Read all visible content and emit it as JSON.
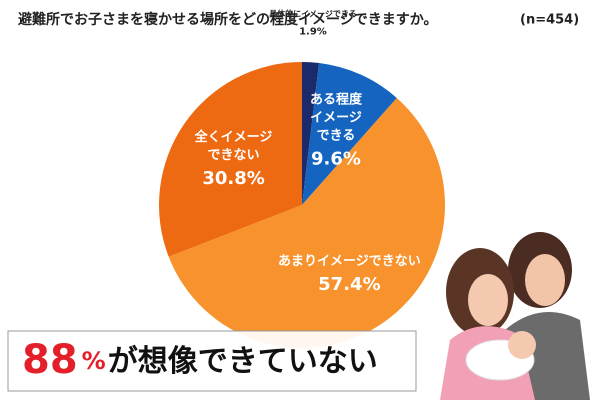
{
  "chart_data": {
    "type": "pie",
    "title": "避難所でお子さまを寝かせる場所をどの程度イメージできますか。",
    "subtitle": "(n=454)",
    "categories": [
      "具体的にイメージできる",
      "ある程度\nイメージ\nできる",
      "あまりイメージできない",
      "全くイメージ\nできない"
    ],
    "values": [
      1.9,
      9.6,
      57.4,
      30.8
    ],
    "value_labels": [
      "1.9%",
      "9.6%",
      "57.4%",
      "30.8%"
    ],
    "colors": [
      "#1b2a6b",
      "#1565c0",
      "#f7922d",
      "#ee6a12"
    ],
    "start_angle": 0,
    "direction": "clockwise",
    "annotation": {
      "number": "88",
      "unit": "%",
      "text": "が想像できていない"
    }
  }
}
